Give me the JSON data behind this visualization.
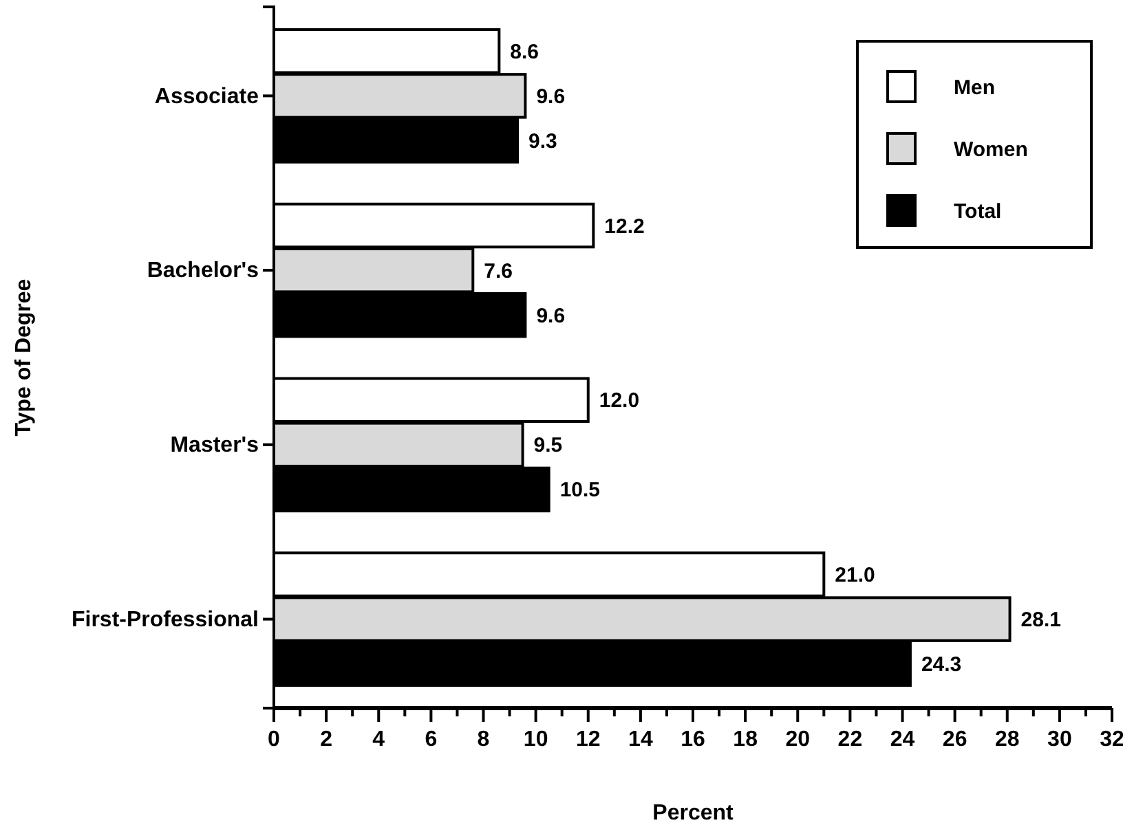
{
  "chart_data": {
    "type": "bar",
    "orientation": "horizontal",
    "xlabel": "Percent",
    "ylabel": "Type of Degree",
    "categories": [
      "Associate",
      "Bachelor's",
      "Master's",
      "First-Professional"
    ],
    "series": [
      {
        "name": "Men",
        "color": "#ffffff",
        "values": [
          8.6,
          12.2,
          12.0,
          21.0
        ],
        "value_labels": [
          "8.6",
          "12.2",
          "12.0",
          "21.0"
        ]
      },
      {
        "name": "Women",
        "color": "#d9d9d9",
        "values": [
          9.6,
          7.6,
          9.5,
          28.1
        ],
        "value_labels": [
          "9.6",
          "7.6",
          "9.5",
          "28.1"
        ]
      },
      {
        "name": "Total",
        "color": "#000000",
        "values": [
          9.3,
          9.6,
          10.5,
          24.3
        ],
        "value_labels": [
          "9.3",
          "9.6",
          "10.5",
          "24.3"
        ]
      }
    ],
    "xlim": [
      0,
      32
    ],
    "xticks": [
      0,
      {
        "value": 1,
        "label": null
      },
      2,
      {
        "value": 3,
        "label": null
      },
      4,
      {
        "value": 5,
        "label": null
      },
      6,
      {
        "value": 7,
        "label": null
      },
      8,
      {
        "value": 9,
        "label": null
      },
      10,
      {
        "value": 11,
        "label": null
      },
      12,
      {
        "value": 13,
        "label": null
      },
      14,
      {
        "value": 15,
        "label": null
      },
      16,
      {
        "value": 17,
        "label": null
      },
      18,
      {
        "value": 19,
        "label": null
      },
      20,
      {
        "value": 21,
        "label": null
      },
      22,
      {
        "value": 23,
        "label": null
      },
      24,
      {
        "value": 25,
        "label": null
      },
      26,
      {
        "value": 27,
        "label": null
      },
      28,
      {
        "value": 29,
        "label": null
      },
      30,
      {
        "value": 31,
        "label": null
      },
      32
    ],
    "legend": "top right",
    "grid": false
  }
}
